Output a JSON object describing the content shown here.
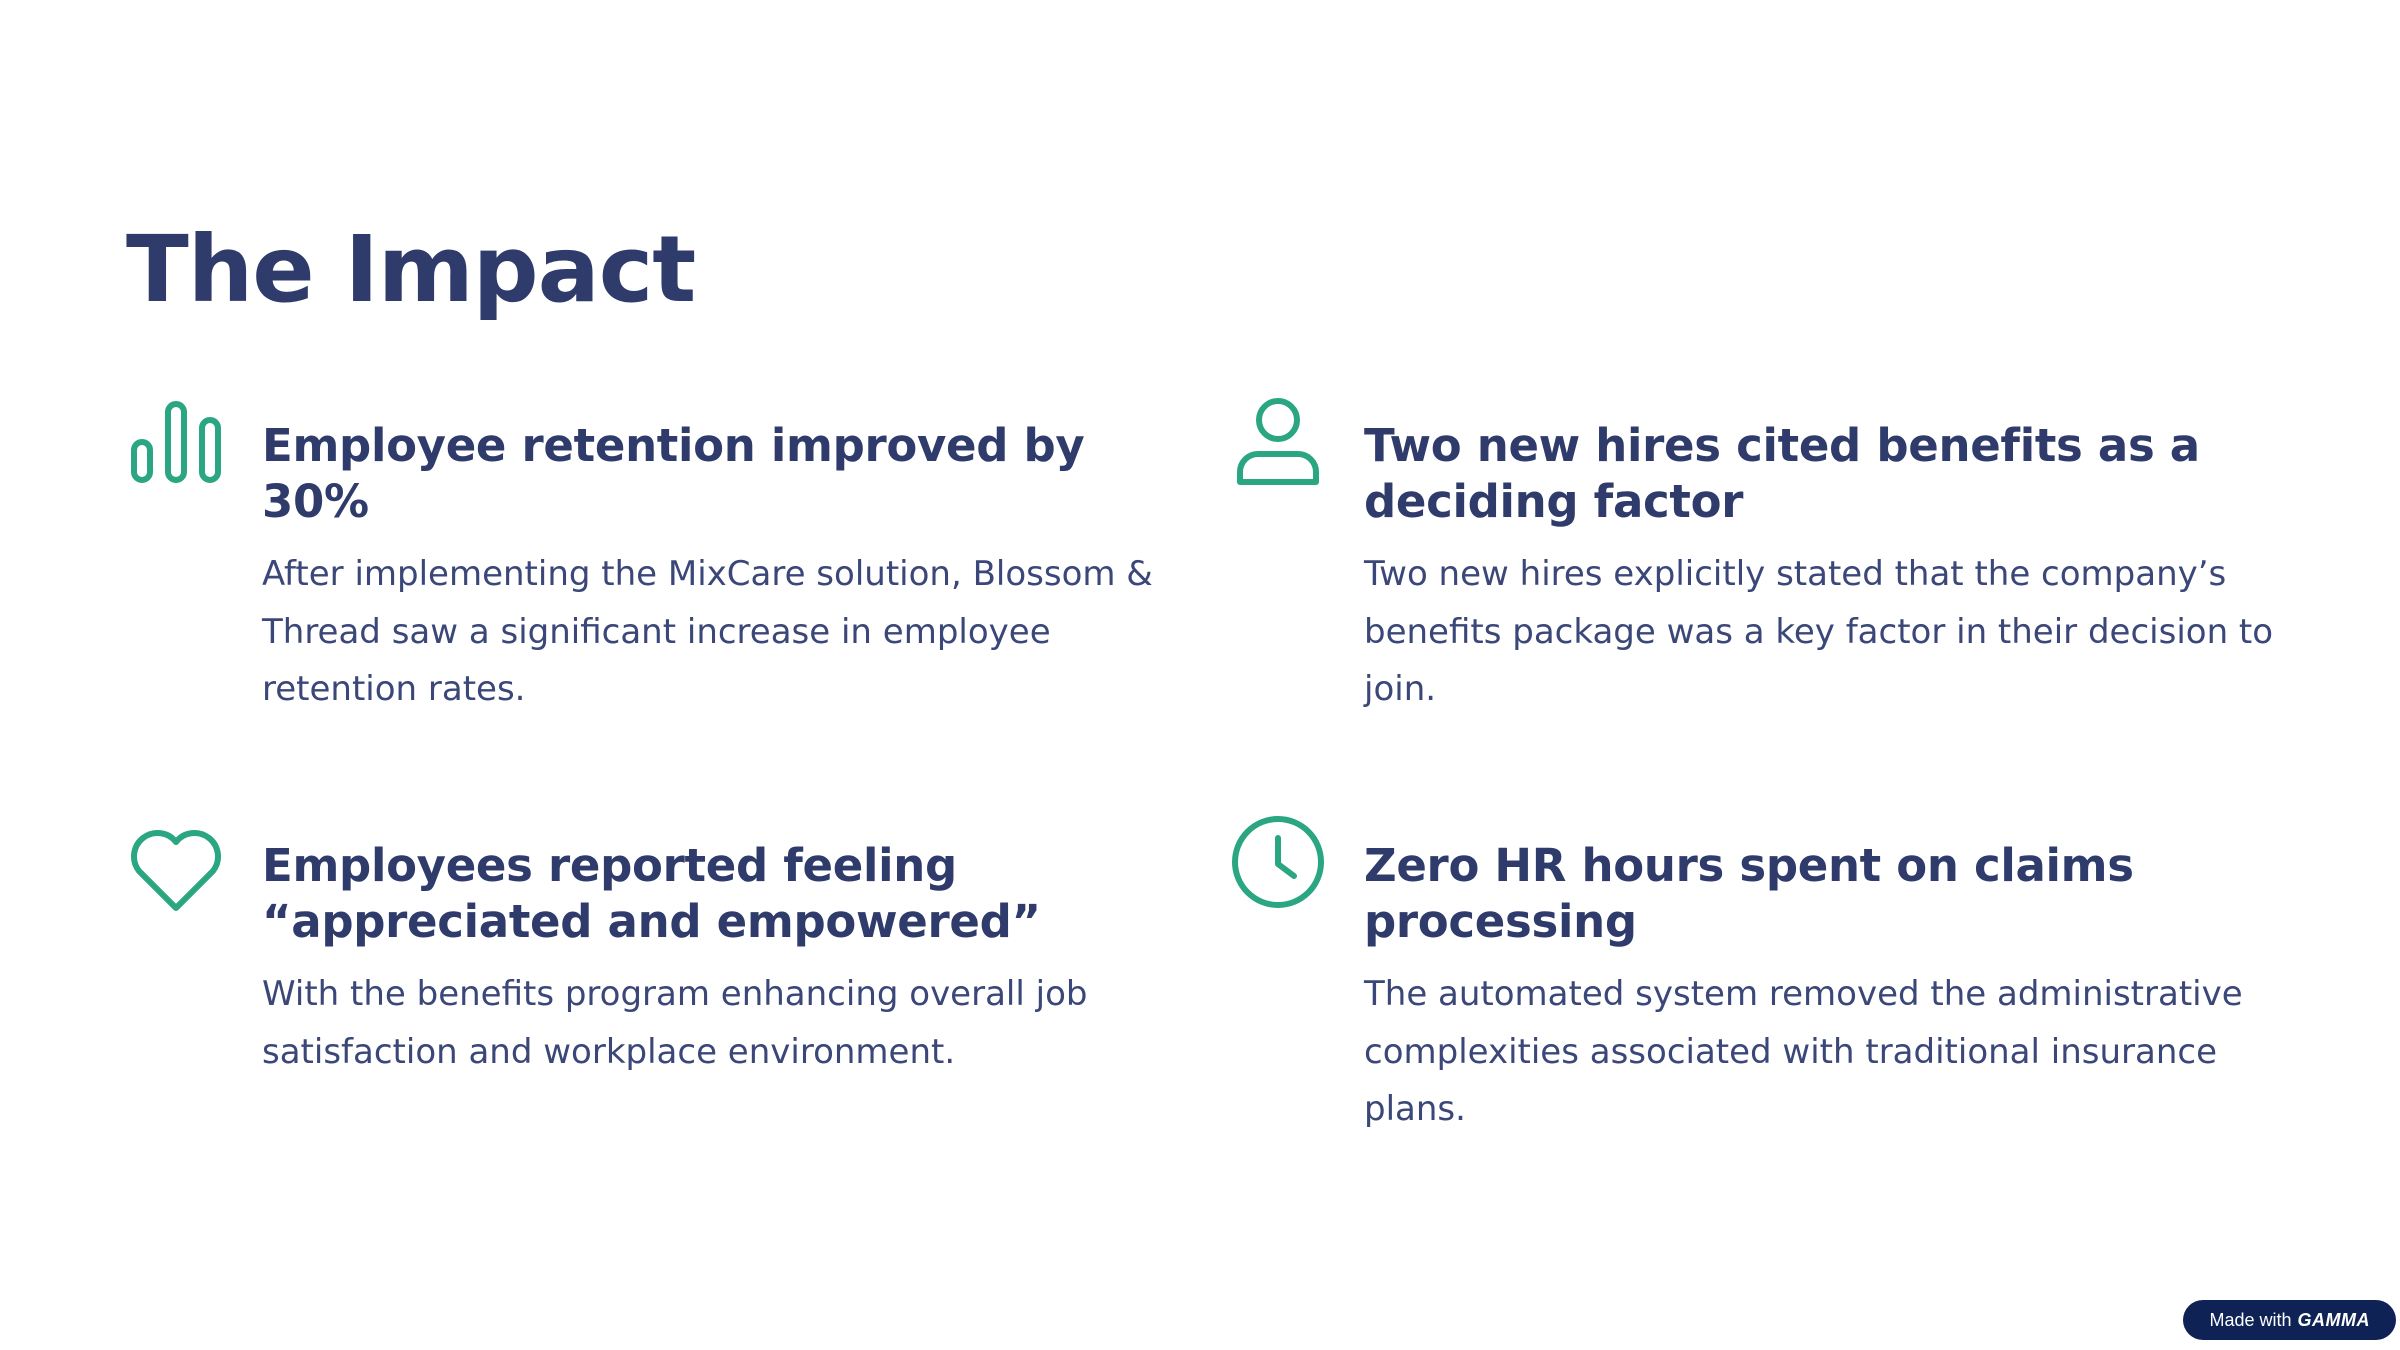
{
  "page": {
    "title": "The Impact"
  },
  "colors": {
    "heading": "#2f3b6b",
    "body_text": "#3a4778",
    "icon_accent": "#2aa682",
    "badge_bg": "#0f2255"
  },
  "cards": [
    {
      "icon": "bar-chart-icon",
      "title": "Employee retention improved by 30%",
      "text": "After implementing the MixCare solution, Blossom & Thread saw a significant increase in employee retention rates."
    },
    {
      "icon": "user-icon",
      "title": "Two new hires cited benefits as a deciding factor",
      "text": "Two new hires explicitly stated that the company’s benefits package was a key factor in their decision to join."
    },
    {
      "icon": "heart-icon",
      "title": "Employees reported feeling “appreciated and empowered”",
      "text": "With the benefits program enhancing overall job satisfaction and workplace environment."
    },
    {
      "icon": "clock-icon",
      "title": "Zero HR hours spent on claims processing",
      "text": "The automated system removed the administrative complexities associated with traditional insurance plans."
    }
  ],
  "badge": {
    "prefix": "Made with",
    "brand": "GAMMA"
  }
}
